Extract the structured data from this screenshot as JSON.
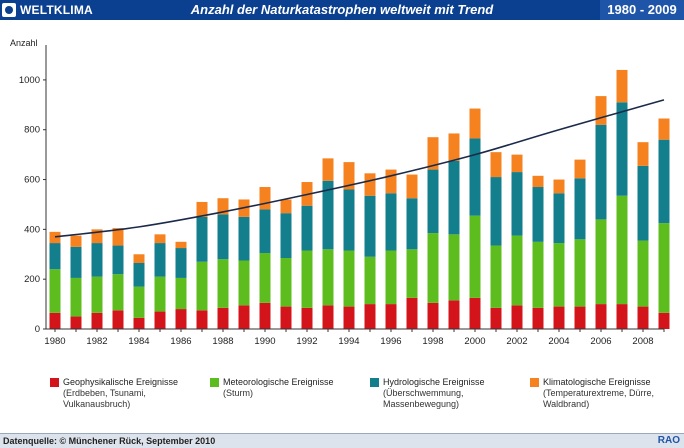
{
  "header": {
    "brand": "WELTKLIMA",
    "title": "Anzahl der Naturkatastrophen weltweit  mit Trend",
    "period": "1980 - 2009"
  },
  "chart_data": {
    "type": "bar",
    "stacked": true,
    "ylabel": "Anzahl",
    "ylim": [
      0,
      1100
    ],
    "yticks": [
      0,
      200,
      400,
      600,
      800,
      1000
    ],
    "xticks": [
      1980,
      1982,
      1984,
      1986,
      1988,
      1990,
      1992,
      1994,
      1996,
      1998,
      2000,
      2002,
      2004,
      2006,
      2008
    ],
    "categories": [
      1980,
      1981,
      1982,
      1983,
      1984,
      1985,
      1986,
      1987,
      1988,
      1989,
      1990,
      1991,
      1992,
      1993,
      1994,
      1995,
      1996,
      1997,
      1998,
      1999,
      2000,
      2001,
      2002,
      2003,
      2004,
      2005,
      2006,
      2007,
      2008,
      2009
    ],
    "series": [
      {
        "name": "Geophysikalische Ereignisse",
        "color": "#d4141b",
        "values": [
          65,
          50,
          65,
          75,
          45,
          70,
          80,
          75,
          85,
          95,
          105,
          90,
          85,
          95,
          90,
          100,
          100,
          125,
          105,
          115,
          125,
          85,
          95,
          85,
          90,
          90,
          100,
          100,
          90,
          65
        ]
      },
      {
        "name": "Meteorologische Ereignisse",
        "color": "#5ebd1e",
        "values": [
          175,
          155,
          145,
          145,
          125,
          140,
          125,
          195,
          195,
          180,
          200,
          195,
          230,
          225,
          225,
          190,
          215,
          195,
          280,
          265,
          330,
          250,
          280,
          265,
          255,
          270,
          340,
          435,
          265,
          360
        ]
      },
      {
        "name": "Hydrologische Ereignisse",
        "color": "#137e8c",
        "values": [
          105,
          125,
          135,
          115,
          95,
          135,
          120,
          180,
          180,
          175,
          175,
          180,
          180,
          275,
          245,
          245,
          230,
          205,
          255,
          295,
          310,
          275,
          255,
          220,
          200,
          245,
          380,
          375,
          300,
          335
        ]
      },
      {
        "name": "Klimatologische Ereignisse",
        "color": "#f5821f",
        "values": [
          45,
          45,
          55,
          70,
          35,
          35,
          25,
          60,
          65,
          70,
          90,
          55,
          95,
          90,
          110,
          90,
          95,
          95,
          130,
          110,
          120,
          100,
          70,
          45,
          55,
          75,
          115,
          130,
          95,
          85
        ]
      }
    ],
    "trend": {
      "x": [
        1980,
        1984,
        1988,
        1992,
        1996,
        2000,
        2004,
        2009
      ],
      "y": [
        370,
        410,
        470,
        540,
        615,
        700,
        800,
        920
      ]
    },
    "grid": false
  },
  "legend": [
    {
      "label": "Geophysikalische Ereignisse",
      "sub": "(Erdbeben, Tsunami, Vulkanausbruch)",
      "color": "#d4141b"
    },
    {
      "label": "Meteorologische Ereignisse",
      "sub": "(Sturm)",
      "color": "#5ebd1e"
    },
    {
      "label": "Hydrologische Ereignisse",
      "sub": "(Überschwemmung, Massenbewegung)",
      "color": "#137e8c"
    },
    {
      "label": "Klimatologische Ereignisse",
      "sub": "(Temperaturextreme, Dürre, Waldbrand)",
      "color": "#f5821f"
    }
  ],
  "footer": {
    "source": "Datenquelle: © Münchener Rück,  September 2010",
    "logo": "RAO"
  }
}
